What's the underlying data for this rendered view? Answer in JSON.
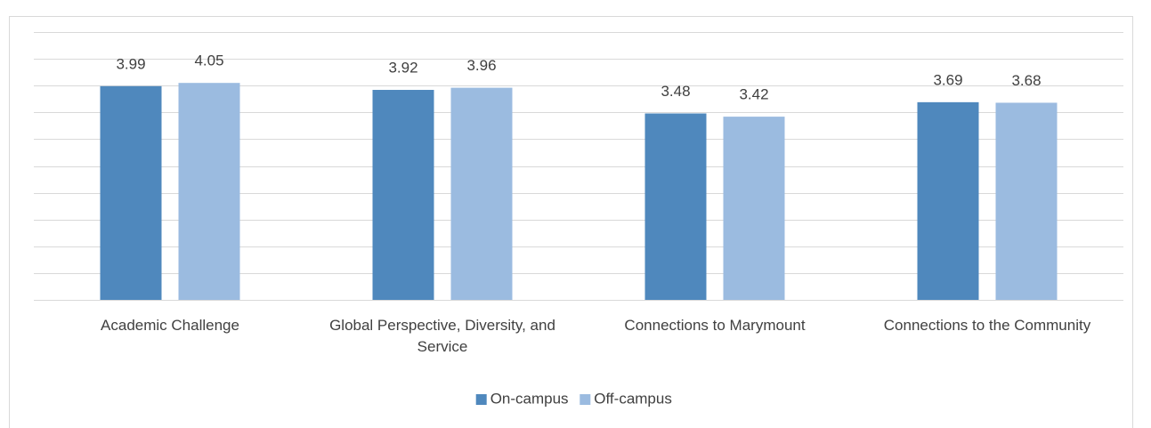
{
  "chart_data": {
    "type": "bar",
    "categories": [
      "Academic Challenge",
      "Global Perspective, Diversity, and Service",
      "Connections to Marymount",
      "Connections to the Community"
    ],
    "series": [
      {
        "name": "On-campus",
        "color": "#4f88bd",
        "values": [
          3.99,
          3.92,
          3.48,
          3.69
        ]
      },
      {
        "name": "Off-campus",
        "color": "#9bbbe0",
        "values": [
          4.05,
          3.96,
          3.42,
          3.68
        ]
      }
    ],
    "ylim": [
      0,
      5
    ],
    "yticks": [
      0,
      0.5,
      1,
      1.5,
      2,
      2.5,
      3,
      3.5,
      4,
      4.5,
      5
    ],
    "grid": true,
    "legend": "bottom"
  }
}
